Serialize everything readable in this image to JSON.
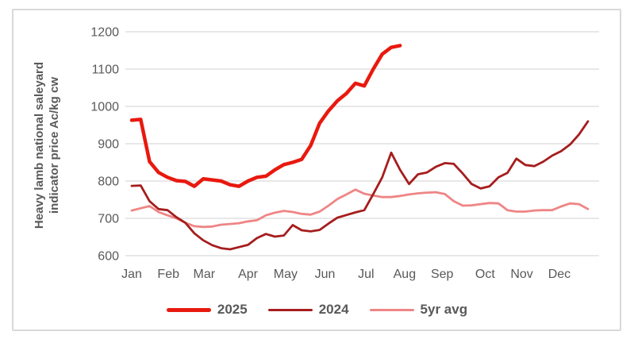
{
  "chart_data": {
    "type": "line",
    "title": "",
    "ylabel": "Heavy lamb national saleyard indicator price Ac/kg cw",
    "ylabel_line1": "Heavy lamb national saleyard",
    "ylabel_line2": "indicator price Ac/kg cw",
    "ylim": [
      600,
      1200
    ],
    "yticks": [
      600,
      700,
      800,
      900,
      1000,
      1100,
      1200
    ],
    "x_unit": "week",
    "weeks_per_year": 52,
    "month_labels": [
      "Jan",
      "Feb",
      "Mar",
      "Apr",
      "May",
      "Jun",
      "Jul",
      "Aug",
      "Sep",
      "Oct",
      "Nov",
      "Dec"
    ],
    "month_tick_weeks": [
      1,
      5.1,
      9.1,
      14,
      18.2,
      22.6,
      27.2,
      31.5,
      35.7,
      40.5,
      44.6,
      48.8
    ],
    "grid": "horizontal",
    "legend_position": "bottom",
    "colors": {
      "grid": "#d9d9d9",
      "border": "#d9d9d9",
      "text": "#595959",
      "background": "#ffffff",
      "series_2025": "#e8190f",
      "series_2024": "#a61d1d",
      "series_5yr_avg": "#ef8585"
    },
    "series": [
      {
        "name": "2025",
        "color": "#e8190f",
        "width": 4.5,
        "start_week": 1,
        "values": [
          963,
          965,
          852,
          823,
          810,
          801,
          799,
          786,
          806,
          803,
          800,
          790,
          786,
          800,
          810,
          813,
          830,
          844,
          850,
          858,
          895,
          955,
          988,
          1015,
          1035,
          1062,
          1055,
          1100,
          1140,
          1158,
          1163
        ]
      },
      {
        "name": "2024",
        "color": "#a61d1d",
        "width": 2.8,
        "start_week": 1,
        "values": [
          787,
          788,
          746,
          725,
          722,
          703,
          688,
          660,
          641,
          628,
          620,
          617,
          623,
          629,
          647,
          658,
          651,
          654,
          682,
          668,
          665,
          669,
          686,
          702,
          709,
          716,
          722,
          765,
          810,
          876,
          830,
          792,
          818,
          823,
          838,
          848,
          846,
          820,
          792,
          780,
          786,
          810,
          822,
          860,
          843,
          840,
          852,
          868,
          880,
          898,
          925,
          960
        ]
      },
      {
        "name": "5yr avg",
        "color": "#ef8585",
        "width": 2.8,
        "start_week": 1,
        "values": [
          721,
          727,
          733,
          717,
          708,
          700,
          688,
          679,
          677,
          678,
          683,
          685,
          687,
          692,
          695,
          708,
          715,
          720,
          717,
          712,
          710,
          718,
          734,
          752,
          764,
          777,
          766,
          761,
          757,
          757,
          760,
          764,
          767,
          769,
          770,
          765,
          746,
          734,
          735,
          738,
          741,
          740,
          722,
          718,
          718,
          721,
          722,
          722,
          732,
          740,
          738,
          725
        ]
      }
    ]
  }
}
